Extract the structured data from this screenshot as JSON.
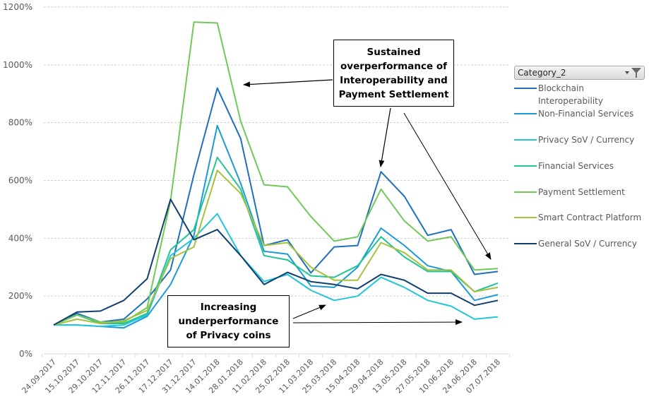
{
  "chart_data": {
    "type": "line",
    "title": "",
    "xlabel": "",
    "ylabel": "",
    "ylim": [
      0,
      1200
    ],
    "y_tick_step": 200,
    "y_tick_labels": [
      "0%",
      "200%",
      "400%",
      "600%",
      "800%",
      "1000%",
      "1200%"
    ],
    "grid": "horizontal dashed",
    "categories": [
      "24.09.2017",
      "15.10.2017",
      "29.10.2017",
      "12.11.2017",
      "26.11.2017",
      "17.12.2017",
      "31.12.2017",
      "14.01.2018",
      "28.01.2018",
      "11.02.2018",
      "25.02.2018",
      "11.03.2018",
      "25.03.2018",
      "15.04.2018",
      "29.04.2018",
      "13.05.2018",
      "27.05.2018",
      "10.06.2018",
      "24.06.2018",
      "07.07.2018"
    ],
    "series": [
      {
        "name": "Blockchain Interoperability",
        "color": "#1f6fc1",
        "values": [
          100,
          140,
          110,
          120,
          190,
          290,
          620,
          920,
          745,
          375,
          395,
          280,
          370,
          375,
          630,
          545,
          410,
          430,
          275,
          285
        ]
      },
      {
        "name": "Non-Financial Services",
        "color": "#1b9ad6",
        "values": [
          100,
          100,
          95,
          90,
          130,
          240,
          410,
          790,
          590,
          355,
          345,
          235,
          230,
          300,
          435,
          375,
          305,
          285,
          185,
          205
        ]
      },
      {
        "name": "Privacy SoV / Currency",
        "color": "#22c6d8",
        "values": [
          100,
          100,
          95,
          100,
          135,
          340,
          400,
          485,
          340,
          250,
          275,
          220,
          185,
          200,
          265,
          230,
          185,
          165,
          120,
          128
        ]
      },
      {
        "name": "Financial Services",
        "color": "#20c497",
        "values": [
          100,
          135,
          105,
          105,
          140,
          360,
          430,
          680,
          570,
          340,
          325,
          270,
          265,
          305,
          405,
          335,
          285,
          285,
          215,
          245
        ]
      },
      {
        "name": "Payment Settlement",
        "color": "#72c856",
        "values": [
          100,
          135,
          110,
          110,
          160,
          530,
          1148,
          1145,
          805,
          585,
          578,
          475,
          390,
          405,
          570,
          460,
          390,
          405,
          290,
          295
        ]
      },
      {
        "name": "Smart Contract Platform",
        "color": "#a6c13c",
        "values": [
          100,
          120,
          105,
          115,
          150,
          330,
          370,
          635,
          555,
          375,
          385,
          300,
          255,
          255,
          385,
          350,
          290,
          290,
          215,
          230
        ]
      },
      {
        "name": "General SoV / Currency",
        "color": "#0f3f6d",
        "values": [
          100,
          145,
          148,
          185,
          260,
          535,
          395,
          430,
          340,
          240,
          282,
          250,
          240,
          225,
          275,
          255,
          210,
          210,
          168,
          185
        ]
      }
    ],
    "legend": {
      "title": "Category_2",
      "placement": "right",
      "items": [
        "Blockchain Interoperability",
        "Non-Financial Services",
        "Privacy SoV / Currency",
        "Financial Services",
        "Payment Settlement",
        "Smart Contract Platform",
        "General SoV / Currency"
      ]
    },
    "annotations": [
      {
        "id": "top",
        "lines": [
          "Sustained",
          "overperformance of",
          "Interoperability and",
          "Payment Settlement"
        ]
      },
      {
        "id": "bottom",
        "lines": [
          "Increasing",
          "underperformance",
          "of Privacy coins"
        ]
      }
    ]
  },
  "legend_header": {
    "label": "Category_2",
    "filter_icon": "filter-funnel-icon",
    "dropdown_icon": "dropdown-arrow-icon"
  }
}
